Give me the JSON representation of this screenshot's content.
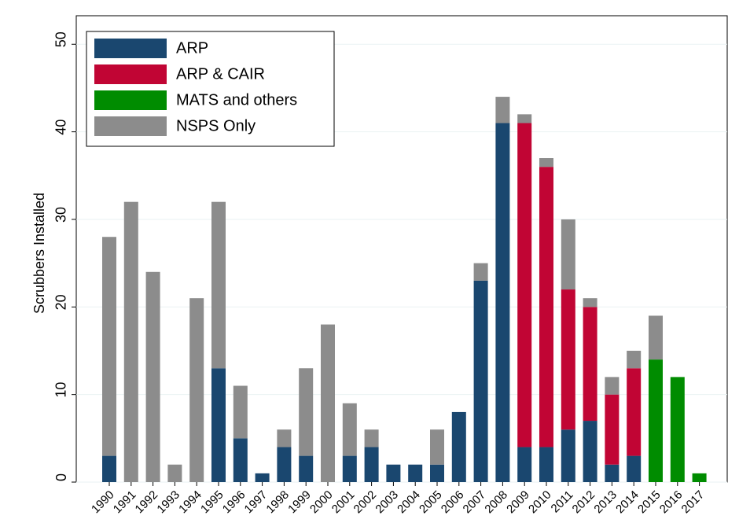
{
  "chart_data": {
    "type": "stacked-bar",
    "y_label": "Scrubbers Installed",
    "categories": [
      "1990",
      "1991",
      "1992",
      "1993",
      "1994",
      "1995",
      "1996",
      "1997",
      "1998",
      "1999",
      "2000",
      "2001",
      "2002",
      "2003",
      "2004",
      "2005",
      "2006",
      "2007",
      "2008",
      "2009",
      "2010",
      "2011",
      "2012",
      "2013",
      "2014",
      "2015",
      "2016",
      "2017"
    ],
    "series": [
      {
        "name": "ARP",
        "color": "#1a476f",
        "values": [
          3,
          0,
          0,
          0,
          0,
          13,
          5,
          1,
          4,
          3,
          0,
          3,
          4,
          2,
          2,
          2,
          8,
          23,
          41,
          4,
          4,
          6,
          7,
          2,
          3,
          0,
          0,
          0
        ]
      },
      {
        "name": "ARP & CAIR",
        "color": "#c10534",
        "values": [
          0,
          0,
          0,
          0,
          0,
          0,
          0,
          0,
          0,
          0,
          0,
          0,
          0,
          0,
          0,
          0,
          0,
          0,
          0,
          37,
          32,
          16,
          13,
          8,
          10,
          0,
          0,
          0
        ]
      },
      {
        "name": "MATS and others",
        "color": "#008c00",
        "values": [
          0,
          0,
          0,
          0,
          0,
          0,
          0,
          0,
          0,
          0,
          0,
          0,
          0,
          0,
          0,
          0,
          0,
          0,
          0,
          0,
          0,
          0,
          0,
          0,
          0,
          14,
          12,
          1
        ]
      },
      {
        "name": "NSPS Only",
        "color": "#8c8c8c",
        "values": [
          25,
          32,
          24,
          2,
          21,
          19,
          6,
          0,
          2,
          10,
          18,
          6,
          2,
          0,
          0,
          4,
          0,
          2,
          3,
          1,
          1,
          8,
          1,
          2,
          2,
          5,
          0,
          0
        ]
      }
    ],
    "ylim": [
      0,
      52
    ],
    "yticks": [
      0,
      10,
      20,
      30,
      40,
      50
    ],
    "grid": true,
    "legend": "top-left"
  }
}
